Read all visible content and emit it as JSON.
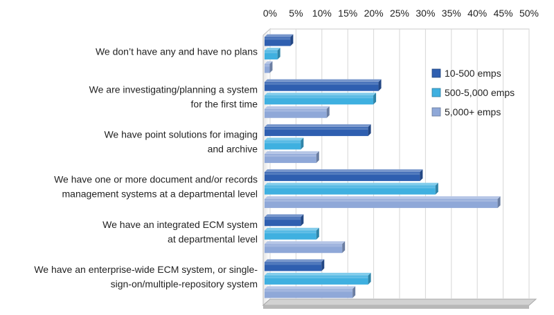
{
  "chart_data": {
    "type": "bar",
    "orientation": "horizontal",
    "categories": [
      [
        "We don’t have any and have no plans"
      ],
      [
        "We are investigating/planning  a system",
        "for the first time"
      ],
      [
        "We have point solutions for imaging",
        "and archive"
      ],
      [
        "We have one or more document and/or records",
        "management systems at a departmental level"
      ],
      [
        "We have an integrated ECM system",
        "at departmental level"
      ],
      [
        "We have an enterprise-wide ECM system, or single-",
        "sign-on/multiple-repository system"
      ]
    ],
    "series": [
      {
        "name": "10-500 emps",
        "color": "#2f5fb0",
        "values": [
          5,
          22,
          20,
          30,
          7,
          11
        ]
      },
      {
        "name": "500-5,000 emps",
        "color": "#3fb0e0",
        "values": [
          2.5,
          21,
          7,
          33,
          10,
          20
        ]
      },
      {
        "name": "5,000+ emps",
        "color": "#8fa8d8",
        "values": [
          1,
          12,
          10,
          45,
          15,
          17
        ]
      }
    ],
    "xlim": [
      0,
      50
    ],
    "xticks": [
      "0%",
      "5%",
      "10%",
      "15%",
      "20%",
      "25%",
      "30%",
      "35%",
      "40%",
      "45%",
      "50%"
    ],
    "xaxis_position": "top",
    "grid": true,
    "legend_position": "right",
    "style": "3d"
  }
}
